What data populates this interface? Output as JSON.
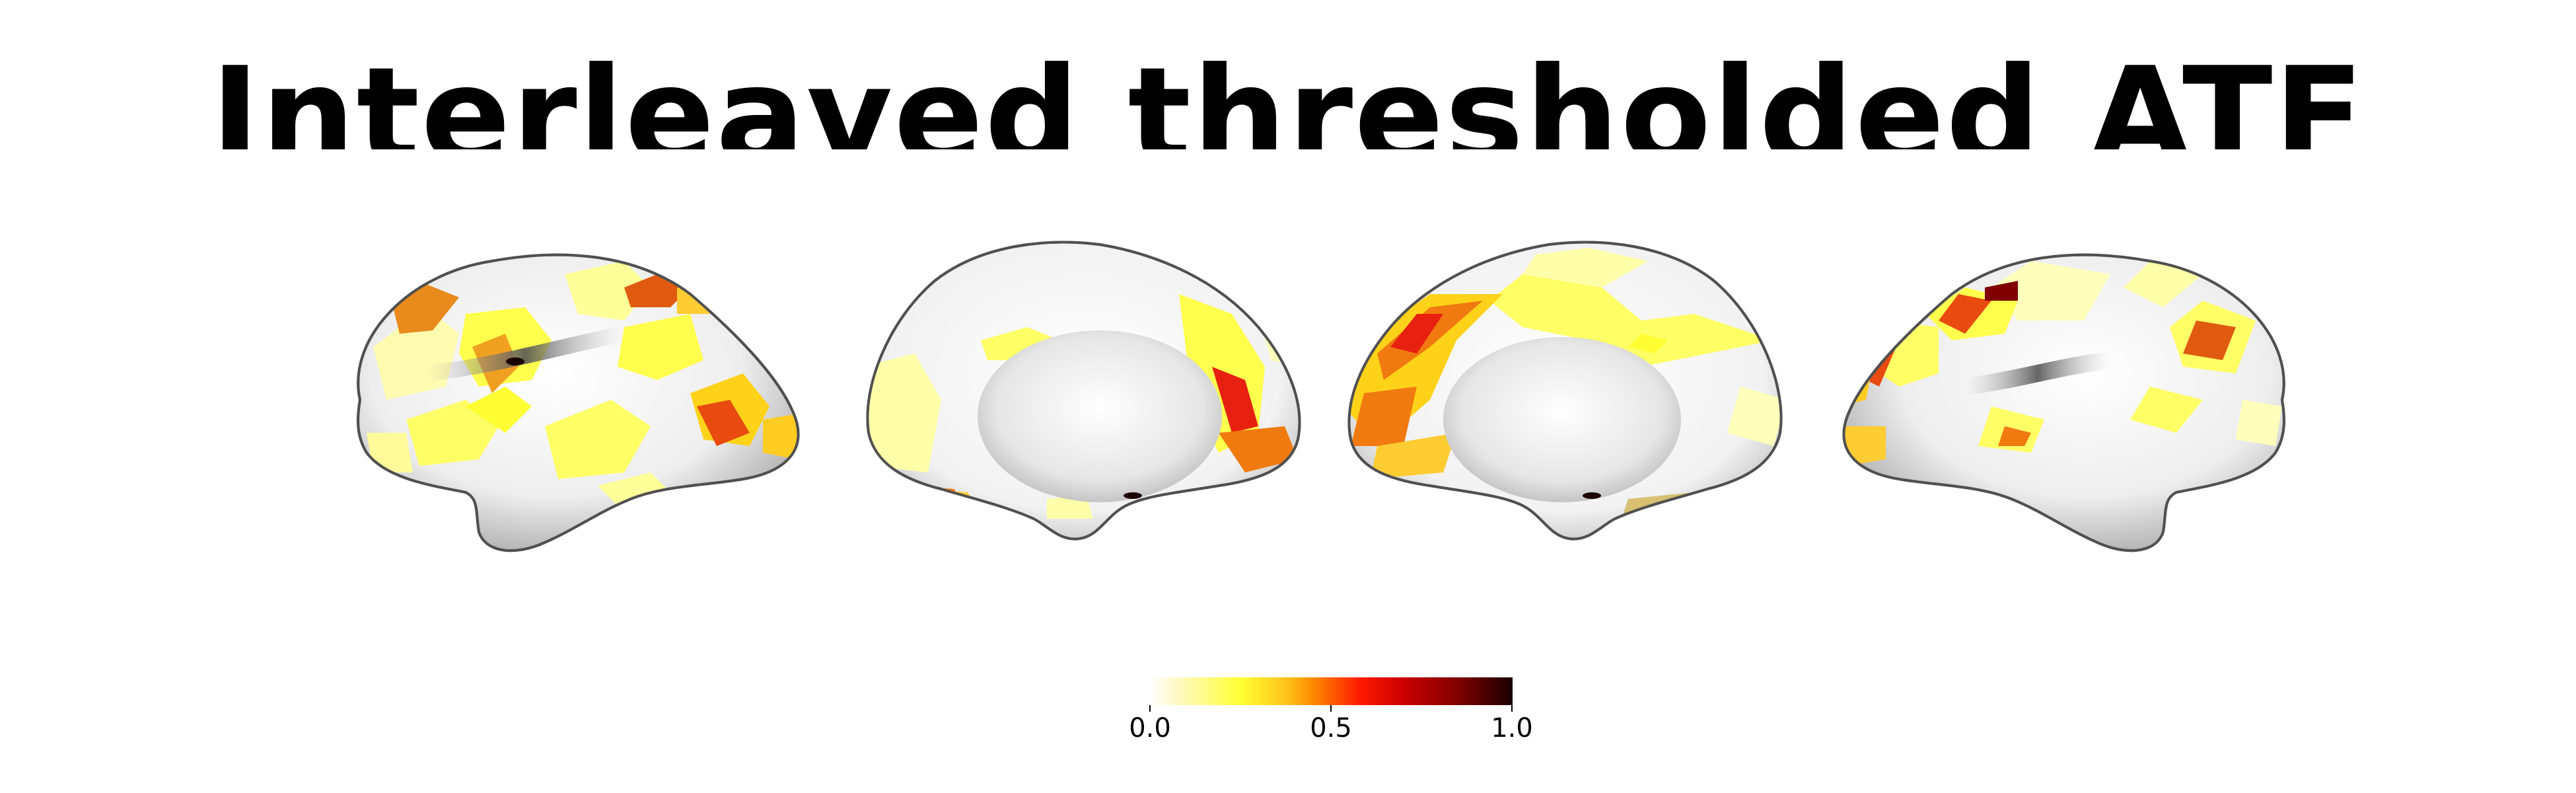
{
  "title": "Interleaved thresholded ATF",
  "colorbar": {
    "min_label": "0.0",
    "mid_label": "0.5",
    "max_label": "1.0",
    "colormap": "hot_r",
    "colors": [
      "#ffffff",
      "#ffff33",
      "#ff8a00",
      "#ff1a00",
      "#800000",
      "#1a0000"
    ]
  },
  "views": [
    "left-lateral",
    "left-medial",
    "right-medial",
    "right-lateral"
  ],
  "colors": {
    "surface_light": "#f4f4f4",
    "surface_shadow": "#8a8a8a",
    "outline": "#505050"
  }
}
